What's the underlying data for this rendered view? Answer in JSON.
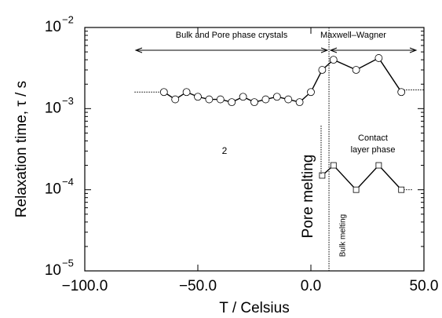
{
  "chart_data": {
    "type": "line",
    "x_label": "T / Celsius",
    "y_label": "Relaxation time, τ / s",
    "log_y": true,
    "xlim": [
      -100,
      50
    ],
    "xticks": [
      {
        "value": -100,
        "label": "−100.0"
      },
      {
        "value": -50,
        "label": "−50.0"
      },
      {
        "value": 0,
        "label": "0.0"
      },
      {
        "value": 50,
        "label": "50.0"
      }
    ],
    "ylim": [
      1e-05,
      0.01
    ],
    "yticks": [
      {
        "value": 0.01,
        "label": "10",
        "exponent": "−2"
      },
      {
        "value": 0.001,
        "label": "10",
        "exponent": "−3"
      },
      {
        "value": 0.0001,
        "label": "10",
        "exponent": "−4"
      },
      {
        "value": 1e-05,
        "label": "10",
        "exponent": "−5"
      }
    ],
    "series": [
      {
        "marker": "circle",
        "color": "#000000",
        "x": [
          -65,
          -60,
          -55,
          -50,
          -45,
          -40,
          -35,
          -30,
          -25,
          -20,
          -15,
          -10,
          -5,
          0,
          5,
          10,
          20,
          30,
          40
        ],
        "values": [
          0.0016,
          0.0013,
          0.0016,
          0.0014,
          0.0013,
          0.0013,
          0.0012,
          0.0014,
          0.0012,
          0.0013,
          0.0014,
          0.0013,
          0.0012,
          0.0016,
          0.003,
          0.004,
          0.003,
          0.0042,
          0.0016
        ]
      },
      {
        "marker": "square",
        "color": "#000000",
        "x": [
          5,
          10,
          20,
          30,
          40
        ],
        "values": [
          0.00015,
          0.0002,
          0.0001,
          0.0002,
          0.0001
        ]
      }
    ],
    "dotted_lines": [
      {
        "x": [
          -78,
          -65
        ],
        "values": [
          0.0016,
          0.0016
        ]
      },
      {
        "x": [
          40,
          50
        ],
        "values": [
          0.0017,
          0.0017
        ]
      },
      {
        "x": [
          40,
          45
        ],
        "values": [
          0.0001,
          0.0001
        ]
      }
    ],
    "vlines": [
      8
    ],
    "annotations": [
      "Bulk and Pore phase crystals",
      "Maxwell–Wagner",
      "Contact layer phase",
      "2",
      "Pore melting",
      "Bulk melting"
    ]
  }
}
